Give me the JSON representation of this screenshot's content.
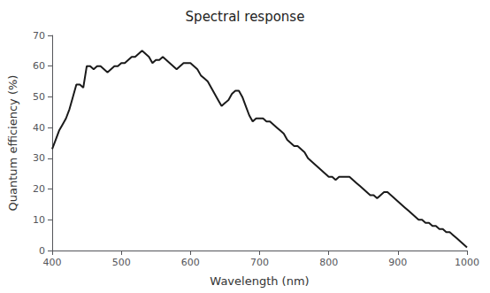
{
  "chart_data": {
    "type": "line",
    "title": "Spectral response",
    "xlabel": "Wavelength (nm)",
    "ylabel": "Quantum efficiency (%)",
    "color": "#1a1a1a",
    "grid": false,
    "xlim": [
      400,
      1000
    ],
    "ylim": [
      0,
      70
    ],
    "xticks": [
      400,
      500,
      600,
      700,
      800,
      900,
      1000
    ],
    "yticks": [
      0,
      10,
      20,
      30,
      40,
      50,
      60,
      70
    ],
    "x": [
      400,
      405,
      410,
      415,
      420,
      425,
      430,
      435,
      440,
      445,
      450,
      455,
      460,
      465,
      470,
      475,
      480,
      485,
      490,
      495,
      500,
      505,
      510,
      515,
      520,
      525,
      530,
      535,
      540,
      545,
      550,
      555,
      560,
      565,
      570,
      575,
      580,
      585,
      590,
      595,
      600,
      605,
      610,
      615,
      620,
      625,
      630,
      635,
      640,
      645,
      650,
      655,
      660,
      665,
      670,
      675,
      680,
      685,
      690,
      695,
      700,
      705,
      710,
      715,
      720,
      725,
      730,
      735,
      740,
      745,
      750,
      755,
      760,
      765,
      770,
      775,
      780,
      785,
      790,
      795,
      800,
      805,
      810,
      815,
      820,
      825,
      830,
      835,
      840,
      845,
      850,
      855,
      860,
      865,
      870,
      875,
      880,
      885,
      890,
      895,
      900,
      905,
      910,
      915,
      920,
      925,
      930,
      935,
      940,
      945,
      950,
      955,
      960,
      965,
      970,
      975,
      980,
      985,
      990,
      995,
      1000
    ],
    "values": [
      33,
      36,
      39,
      41,
      43,
      46,
      50,
      54,
      54,
      53,
      60,
      60,
      59,
      60,
      60,
      59,
      58,
      59,
      60,
      60,
      61,
      61,
      62,
      63,
      63,
      64,
      65,
      64,
      63,
      61,
      62,
      62,
      63,
      62,
      61,
      60,
      59,
      60,
      61,
      61,
      61,
      60,
      59,
      57,
      56,
      55,
      53,
      51,
      49,
      47,
      48,
      49,
      51,
      52,
      52,
      50,
      47,
      44,
      42,
      43,
      43,
      43,
      42,
      42,
      41,
      40,
      39,
      38,
      36,
      35,
      34,
      34,
      33,
      32,
      30,
      29,
      28,
      27,
      26,
      25,
      24,
      24,
      23,
      24,
      24,
      24,
      24,
      23,
      22,
      21,
      20,
      19,
      18,
      18,
      17,
      18,
      19,
      19,
      18,
      17,
      16,
      15,
      14,
      13,
      12,
      11,
      10,
      10,
      9,
      9,
      8,
      8,
      7,
      7,
      6,
      6,
      5,
      4,
      3,
      2,
      1
    ]
  }
}
